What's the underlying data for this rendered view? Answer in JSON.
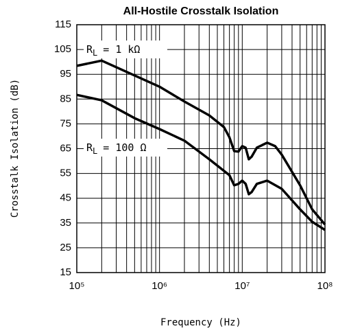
{
  "chart_data": {
    "type": "line",
    "title": "All-Hostile Crosstalk Isolation",
    "x_label": "Frequency (Hz)",
    "y_label": "Crosstalk Isolation (dB)",
    "log_x": true,
    "grid": true,
    "color": "#000000",
    "xlim": [
      100000,
      100000000
    ],
    "xticks": [
      {
        "value": 100000,
        "label": "10⁵"
      },
      {
        "value": 1000000,
        "label": "10⁶"
      },
      {
        "value": 10000000,
        "label": "10⁷"
      },
      {
        "value": 100000000,
        "label": "10⁸"
      }
    ],
    "xminorticks": [
      200000,
      300000,
      400000,
      500000,
      600000,
      700000,
      800000,
      900000,
      2000000,
      3000000,
      4000000,
      5000000,
      6000000,
      7000000,
      8000000,
      9000000,
      20000000,
      30000000,
      40000000,
      50000000,
      60000000,
      70000000,
      80000000,
      90000000
    ],
    "ylim": [
      15,
      115
    ],
    "yticks": [
      15,
      25,
      35,
      45,
      55,
      65,
      75,
      85,
      95,
      105,
      115
    ],
    "annotations": [
      {
        "text": "R",
        "sub": "L",
        "rest": "= 1 kΩ"
      },
      {
        "text": "R",
        "sub": "L",
        "rest": "= 100 Ω"
      }
    ],
    "series": [
      {
        "x": [
          100000,
          200000,
          1000000,
          2000000,
          4000000,
          6000000,
          7000000,
          8000000,
          9000000,
          10000000,
          11000000,
          12000000,
          13000000,
          15000000,
          20000000,
          25000000,
          30000000,
          50000000,
          70000000,
          100000000
        ],
        "values": [
          98.4,
          100.5,
          90,
          84,
          78.4,
          73.7,
          69.6,
          64,
          63.8,
          66,
          65.4,
          60.7,
          61.8,
          65.4,
          67.4,
          66,
          62.6,
          50.2,
          40.5,
          34.4
        ]
      },
      {
        "x": [
          100000,
          200000,
          500000,
          1000000,
          2000000,
          4000000,
          7000000,
          8000000,
          9000000,
          10000000,
          11000000,
          12000000,
          13000000,
          15000000,
          20000000,
          30000000,
          50000000,
          70000000,
          100000000
        ],
        "values": [
          86.7,
          84.5,
          77.3,
          72.9,
          68.2,
          60.7,
          54.3,
          50.2,
          50.8,
          52.1,
          50.8,
          46.6,
          47.5,
          50.8,
          52.1,
          48.8,
          40.5,
          35.5,
          32.2
        ]
      }
    ]
  }
}
